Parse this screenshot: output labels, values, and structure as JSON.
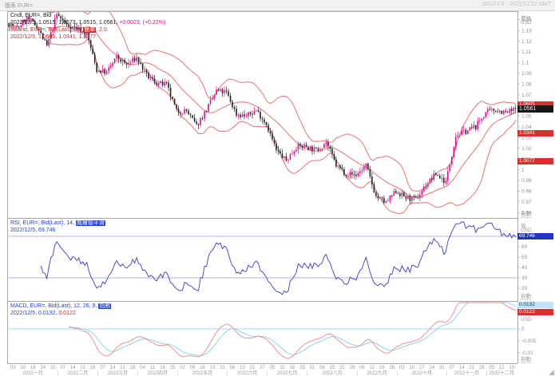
{
  "window": {
    "title_left": "圖表 EUR=",
    "title_right": "2022/1/3 - 2022/12/22 GMT"
  },
  "ui": {
    "auto_label": "自動"
  },
  "main_pane": {
    "legend": {
      "line1": "Cndl, EUR=, Bid",
      "line2_values": "2022/12/5, 1.0515, 1.0573, 1.0515, 1.0561,",
      "line2_change": "+0.0023, (+0.22%)",
      "line3_prefix": "BBand, EUR=, Bid(Last), 20,",
      "line3_chip": "簡單",
      "line3_suffix": ", 2.0",
      "line4": "2022/12/5, 1.0605, 1.0341, 1.0077"
    },
    "axis": {
      "header_line1": "價格",
      "header_line2": "USD",
      "ticks": [
        "1.14",
        "1.13",
        "1.12",
        "1.11",
        "1.1",
        "1.09",
        "1.08",
        "1.07",
        "1.06",
        "1.05",
        "1.04",
        "1.03",
        "1.02",
        "1.01",
        "1",
        "0.99",
        "0.98",
        "0.97",
        "0.96"
      ],
      "price_box": "1.0561",
      "band_boxes": [
        "1.0605",
        "1.0341",
        "1.0077"
      ]
    }
  },
  "rsi_pane": {
    "legend": {
      "line1_prefix": "RSI, EUR=, Bid(Last), 14,",
      "line1_chip": "威爾德平滑",
      "line2": "2022/12/5, 69.746"
    },
    "axis": {
      "header_line1": "值",
      "header_line2": "USD",
      "ticks": [
        "60",
        "50",
        "40",
        "30",
        "20"
      ],
      "value_box": "69.746"
    }
  },
  "macd_pane": {
    "legend": {
      "line1_prefix": "MACD, EUR=, Bid(Last), 12, 26, 9,",
      "line1_chip": "指數",
      "line2_value": "2022/12/5, 0.0132,",
      "line2_signal": "0.0122"
    },
    "axis": {
      "header": "USD",
      "ticks": [
        "0",
        "-0.005",
        "-0.01"
      ],
      "macd_box": "0.0132",
      "signal_box": "0.0122"
    }
  },
  "time_axis": {
    "months": [
      {
        "label": "2022一月",
        "days": [
          "03",
          "10",
          "18",
          "24",
          "31"
        ]
      },
      {
        "label": "2022二月",
        "days": [
          "07",
          "14",
          "21",
          "28"
        ]
      },
      {
        "label": "2022三月",
        "days": [
          "07",
          "14",
          "21",
          "28"
        ]
      },
      {
        "label": "2022四月",
        "days": [
          "04",
          "11",
          "18",
          "25"
        ]
      },
      {
        "label": "2022五月",
        "days": [
          "02",
          "09",
          "16",
          "23",
          "31"
        ]
      },
      {
        "label": "2022六月",
        "days": [
          "06",
          "13",
          "21",
          "27"
        ]
      },
      {
        "label": "2022七月",
        "days": [
          "05",
          "11",
          "18",
          "25"
        ]
      },
      {
        "label": "2022八月",
        "days": [
          "01",
          "08",
          "15",
          "22",
          "29"
        ]
      },
      {
        "label": "2022九月",
        "days": [
          "06",
          "12",
          "19",
          "26"
        ]
      },
      {
        "label": "2022十月",
        "days": [
          "03",
          "10",
          "17",
          "24",
          "31"
        ]
      },
      {
        "label": "2022十一月",
        "days": [
          "07",
          "14",
          "21",
          "28"
        ]
      },
      {
        "label": "2022十二月",
        "days": [
          "05",
          "12",
          "19"
        ]
      }
    ]
  },
  "colors": {
    "up_candle": "#e50a8c",
    "down_candle": "#222222",
    "bollinger": "#ea7272",
    "rsi_line": "#3b3bd1",
    "rsi_guide": "#9a9ade",
    "macd_line": "#ef8585",
    "signal_line": "#7fcfeb",
    "zero_line": "#a5d8ef",
    "band_box_bg": "#d83030",
    "price_box_bg": "#151515",
    "rsi_box_bg": "#2233c0",
    "macd_box_bg": "#bfe2f7",
    "frame": "#a8a8a8",
    "tick_text": "#909090"
  },
  "chart_data": {
    "type": "candlestick",
    "symbol": "EUR=",
    "quote": "Bid",
    "interval": "daily",
    "title": "Cndl, EUR=, Bid",
    "x_range": [
      "2022/1/3",
      "2022/12/22"
    ],
    "ylim": [
      0.955,
      1.148
    ],
    "y_ticks": [
      1.14,
      1.13,
      1.12,
      1.11,
      1.1,
      1.09,
      1.08,
      1.07,
      1.06,
      1.05,
      1.04,
      1.03,
      1.02,
      1.01,
      1.0,
      0.99,
      0.98,
      0.97,
      0.96
    ],
    "last_bar": {
      "date": "2022/12/5",
      "open": 1.0515,
      "high": 1.0573,
      "low": 1.0515,
      "close": 1.0561,
      "change": 0.0023,
      "change_pct": 0.22
    },
    "weekly_closes": [
      [
        "01-03",
        1.132
      ],
      [
        "01-10",
        1.1415
      ],
      [
        "01-18",
        1.134
      ],
      [
        "01-24",
        1.115
      ],
      [
        "01-31",
        1.145
      ],
      [
        "02-07",
        1.135
      ],
      [
        "02-14",
        1.132
      ],
      [
        "02-21",
        1.127
      ],
      [
        "02-28",
        1.093
      ],
      [
        "03-07",
        1.091
      ],
      [
        "03-14",
        1.105
      ],
      [
        "03-21",
        1.098
      ],
      [
        "03-28",
        1.1045
      ],
      [
        "04-04",
        1.088
      ],
      [
        "04-11",
        1.081
      ],
      [
        "04-18",
        1.079
      ],
      [
        "04-25",
        1.0545
      ],
      [
        "05-02",
        1.055
      ],
      [
        "05-09",
        1.041
      ],
      [
        "05-16",
        1.056
      ],
      [
        "05-23",
        1.0735
      ],
      [
        "05-31",
        1.072
      ],
      [
        "06-06",
        1.052
      ],
      [
        "06-13",
        1.05
      ],
      [
        "06-21",
        1.0555
      ],
      [
        "06-27",
        1.043
      ],
      [
        "07-05",
        1.018
      ],
      [
        "07-11",
        1.0085
      ],
      [
        "07-18",
        1.0215
      ],
      [
        "07-25",
        1.022
      ],
      [
        "08-01",
        1.018
      ],
      [
        "08-08",
        1.026
      ],
      [
        "08-15",
        1.004
      ],
      [
        "08-22",
        0.9965
      ],
      [
        "08-29",
        0.995
      ],
      [
        "09-06",
        1.004
      ],
      [
        "09-12",
        0.975
      ],
      [
        "09-19",
        0.969
      ],
      [
        "09-26",
        0.98
      ],
      [
        "10-03",
        0.974
      ],
      [
        "10-10",
        0.972
      ],
      [
        "10-17",
        0.986
      ],
      [
        "10-24",
        0.996
      ],
      [
        "10-31",
        0.9885
      ],
      [
        "11-07",
        1.032
      ],
      [
        "11-14",
        1.036
      ],
      [
        "11-21",
        1.0405
      ],
      [
        "11-28",
        1.0535
      ],
      [
        "12-05",
        1.0561
      ],
      [
        "12-12",
        1.053
      ],
      [
        "12-19",
        1.0565
      ]
    ],
    "indicators": {
      "bollinger": {
        "period": 20,
        "ma_type": "簡單",
        "stdev": 2,
        "upper": 1.0605,
        "middle": 1.0341,
        "lower": 1.0077
      },
      "rsi": {
        "period": 14,
        "smoothing": "威爾德平滑",
        "last": 69.746,
        "guides": [
          70,
          30
        ],
        "visible_ticks": [
          60,
          50,
          40,
          30,
          20
        ]
      },
      "macd": {
        "fast": 12,
        "slow": 26,
        "signal_period": 9,
        "ma_type": "指數",
        "last_macd": 0.0132,
        "last_signal": 0.0122,
        "visible_ticks": [
          0,
          -0.005,
          -0.01
        ]
      }
    }
  }
}
